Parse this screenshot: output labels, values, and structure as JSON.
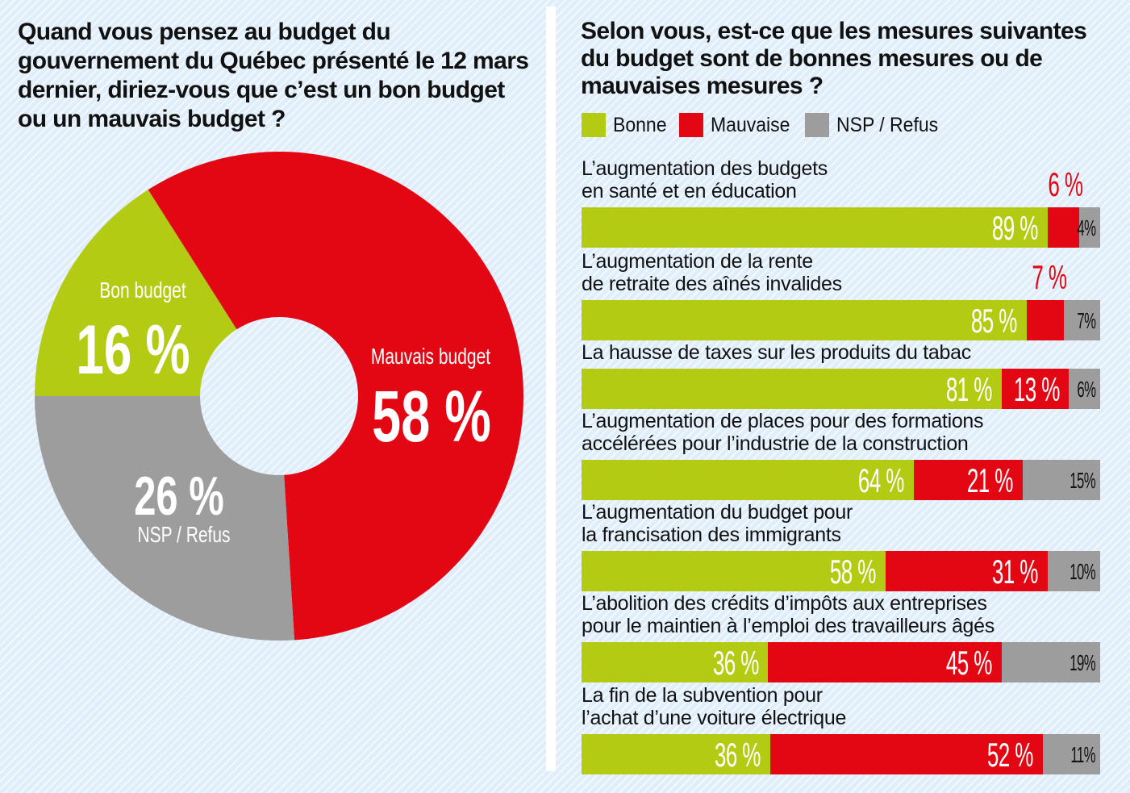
{
  "colors": {
    "bonne": "#b4cb14",
    "mauvaise": "#e30613",
    "nsp": "#9d9d9d",
    "background": "#dfeefa",
    "text": "#111111"
  },
  "left": {
    "title": "Quand vous pensez au budget du gouvernement du Québec présenté le 12 mars dernier, diriez-vous que c’est un bon budget ou un mauvais budget ?"
  },
  "right": {
    "title": "Selon vous, est-ce que les mesures suivantes du budget sont de bonnes mesures ou de mauvaises mesures ?",
    "legend": [
      {
        "label": "Bonne",
        "key": "bonne"
      },
      {
        "label": "Mauvaise",
        "key": "mauvaise"
      },
      {
        "label": "NSP / Refus",
        "key": "nsp"
      }
    ]
  },
  "chart_data": [
    {
      "type": "pie",
      "variant": "donut",
      "title": "Quand vous pensez au budget du gouvernement du Québec présenté le 12 mars dernier, diriez-vous que c’est un bon budget ou un mauvais budget ?",
      "start": "left (9 o'clock), clockwise",
      "slices": [
        {
          "name": "Bon budget",
          "value": 16,
          "label": "16 %",
          "color": "#b4cb14"
        },
        {
          "name": "Mauvais budget",
          "value": 58,
          "label": "58 %",
          "color": "#e30613"
        },
        {
          "name": "NSP / Refus",
          "value": 26,
          "label": "26 %",
          "color": "#9d9d9d"
        }
      ]
    },
    {
      "type": "bar",
      "orientation": "horizontal",
      "stacked": true,
      "title": "Selon vous, est-ce que les mesures suivantes du budget sont de bonnes mesures ou de mauvaises mesures ?",
      "legend": [
        "Bonne",
        "Mauvaise",
        "NSP / Refus"
      ],
      "legend_position": "top-left",
      "categories": [
        [
          "L’augmentation des budgets",
          "en santé et en éducation"
        ],
        [
          "L’augmentation de la rente",
          "de retraite des aînés invalides"
        ],
        [
          "La hausse de taxes sur les produits du tabac"
        ],
        [
          "L’augmentation de places pour des formations",
          "accélérées pour l’industrie de la construction"
        ],
        [
          "L’augmentation du budget pour",
          "la francisation des immigrants"
        ],
        [
          "L’abolition des crédits d’impôts aux entreprises",
          "pour le maintien à l’emploi des travailleurs âgés"
        ],
        [
          "La fin de la subvention pour",
          "l’achat d’une voiture électrique"
        ]
      ],
      "series": [
        {
          "name": "Bonne",
          "color": "#b4cb14",
          "values": [
            89,
            85,
            81,
            64,
            58,
            36,
            36
          ]
        },
        {
          "name": "Mauvaise",
          "color": "#e30613",
          "values": [
            6,
            7,
            13,
            21,
            31,
            45,
            52
          ]
        },
        {
          "name": "NSP / Refus",
          "color": "#9d9d9d",
          "values": [
            4,
            7,
            6,
            15,
            10,
            19,
            11
          ]
        }
      ],
      "unit": "%"
    }
  ]
}
